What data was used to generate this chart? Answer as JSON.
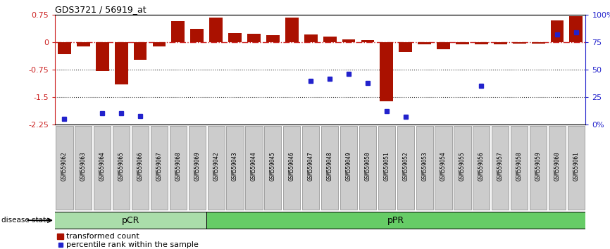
{
  "title": "GDS3721 / 56919_at",
  "samples": [
    "GSM559062",
    "GSM559063",
    "GSM559064",
    "GSM559065",
    "GSM559066",
    "GSM559067",
    "GSM559068",
    "GSM559069",
    "GSM559042",
    "GSM559043",
    "GSM559044",
    "GSM559045",
    "GSM559046",
    "GSM559047",
    "GSM559048",
    "GSM559049",
    "GSM559050",
    "GSM559051",
    "GSM559052",
    "GSM559053",
    "GSM559054",
    "GSM559055",
    "GSM559056",
    "GSM559057",
    "GSM559058",
    "GSM559059",
    "GSM559060",
    "GSM559061"
  ],
  "transformed_count": [
    -0.32,
    -0.12,
    -0.78,
    -1.15,
    -0.48,
    -0.12,
    0.58,
    0.37,
    0.68,
    0.26,
    0.24,
    0.2,
    0.68,
    0.22,
    0.15,
    0.09,
    0.07,
    -1.62,
    -0.27,
    -0.06,
    -0.18,
    -0.06,
    -0.06,
    -0.06,
    -0.04,
    -0.04,
    0.6,
    0.72
  ],
  "percentile_rank": [
    5,
    null,
    10,
    10,
    8,
    null,
    null,
    null,
    null,
    null,
    null,
    null,
    null,
    40,
    42,
    46,
    38,
    12,
    7,
    null,
    null,
    null,
    35,
    null,
    null,
    null,
    82,
    84
  ],
  "pCR_count": 8,
  "pPR_count": 20,
  "ylim": [
    -2.25,
    0.75
  ],
  "y_ticks_left": [
    -2.25,
    -1.5,
    -0.75,
    0,
    0.75
  ],
  "y_ticks_right": [
    0,
    25,
    50,
    75,
    100
  ],
  "bar_color": "#aa1100",
  "dot_color": "#2222cc",
  "zero_line_color": "#cc2222",
  "dotted_line_color": "#333333",
  "pCR_color": "#aaddaa",
  "pPR_color": "#66cc66",
  "label_background": "#cccccc",
  "legend_bar_label": "transformed count",
  "legend_dot_label": "percentile rank within the sample",
  "right_labels": [
    "0%",
    "25",
    "50",
    "75",
    "100%"
  ]
}
